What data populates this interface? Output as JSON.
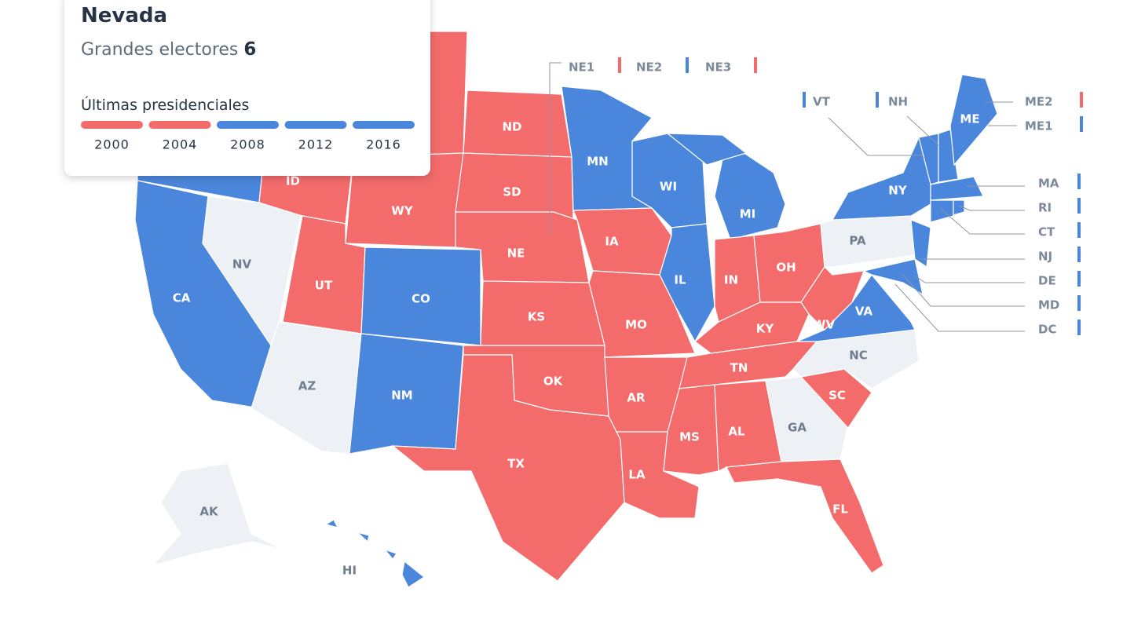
{
  "tooltip": {
    "state": "Nevada",
    "electors_label": "Grandes electores",
    "electors": 6,
    "history_title": "Últimas presidenciales",
    "history": [
      {
        "year": "2000",
        "color": "#f36b6b"
      },
      {
        "year": "2004",
        "color": "#f36b6b"
      },
      {
        "year": "2008",
        "color": "#4a86dc"
      },
      {
        "year": "2012",
        "color": "#4a86dc"
      },
      {
        "year": "2016",
        "color": "#4a86dc"
      }
    ]
  },
  "states": [
    {
      "code": null,
      "color": "#4a86dc"
    },
    {
      "code": null,
      "color": "#4a86dc"
    },
    {
      "code": "CA",
      "color": "#4a86dc"
    },
    {
      "code": "NV",
      "color": "#edf1f6"
    },
    {
      "code": "ID",
      "color": "#f36b6b"
    },
    {
      "code": null,
      "color": "#f36b6b"
    },
    {
      "code": "WY",
      "color": "#f36b6b"
    },
    {
      "code": "UT",
      "color": "#f36b6b"
    },
    {
      "code": "CO",
      "color": "#4a86dc"
    },
    {
      "code": "AZ",
      "color": "#edf1f6"
    },
    {
      "code": "NM",
      "color": "#4a86dc"
    },
    {
      "code": "ND",
      "color": "#f36b6b"
    },
    {
      "code": "SD",
      "color": "#f36b6b"
    },
    {
      "code": "NE",
      "color": "#f36b6b"
    },
    {
      "code": "KS",
      "color": "#f36b6b"
    },
    {
      "code": "OK",
      "color": "#f36b6b"
    },
    {
      "code": "TX",
      "color": "#f36b6b"
    },
    {
      "code": "MN",
      "color": "#4a86dc"
    },
    {
      "code": "IA",
      "color": "#f36b6b"
    },
    {
      "code": "MO",
      "color": "#f36b6b"
    },
    {
      "code": "AR",
      "color": "#f36b6b"
    },
    {
      "code": "LA",
      "color": "#f36b6b"
    },
    {
      "code": "WI",
      "color": "#4a86dc"
    },
    {
      "code": "IL",
      "color": "#4a86dc"
    },
    {
      "code": "MI",
      "color": "#4a86dc"
    },
    {
      "code": null,
      "color": "#4a86dc"
    },
    {
      "code": "IN",
      "color": "#f36b6b"
    },
    {
      "code": "OH",
      "color": "#f36b6b"
    },
    {
      "code": "KY",
      "color": "#f36b6b"
    },
    {
      "code": "TN",
      "color": "#f36b6b"
    },
    {
      "code": "MS",
      "color": "#f36b6b"
    },
    {
      "code": "AL",
      "color": "#f36b6b"
    },
    {
      "code": "GA",
      "color": "#edf1f6"
    },
    {
      "code": "FL",
      "color": "#f36b6b"
    },
    {
      "code": "SC",
      "color": "#f36b6b"
    },
    {
      "code": "NC",
      "color": "#edf1f6"
    },
    {
      "code": "VA",
      "color": "#4a86dc"
    },
    {
      "code": "WV",
      "color": "#f36b6b"
    },
    {
      "code": "PA",
      "color": "#edf1f6"
    },
    {
      "code": "NY",
      "color": "#4a86dc"
    },
    {
      "code": null,
      "color": "#4a86dc"
    },
    {
      "code": null,
      "color": "#4a86dc"
    },
    {
      "code": null,
      "color": "#4a86dc"
    },
    {
      "code": null,
      "color": "#4a86dc"
    },
    {
      "code": "ME",
      "color": "#4a86dc"
    },
    {
      "code": null,
      "color": "#4a86dc"
    },
    {
      "code": null,
      "color": "#4a86dc"
    },
    {
      "code": null,
      "color": "#4a86dc"
    },
    {
      "code": "AK",
      "color": "#edf1f6"
    },
    {
      "code": "HI",
      "color": "#4a86dc"
    }
  ],
  "callouts": [
    {
      "label": "NE1",
      "color": "#f36b6b"
    },
    {
      "label": "NE2",
      "color": "#4a86dc"
    },
    {
      "label": "NE3",
      "color": "#f36b6b"
    },
    {
      "label": "VT",
      "color": "#4a86dc"
    },
    {
      "label": "NH",
      "color": "#4a86dc"
    },
    {
      "label": "ME2",
      "color": "#f36b6b"
    },
    {
      "label": "ME1",
      "color": "#4a86dc"
    },
    {
      "label": "MA",
      "color": "#4a86dc"
    },
    {
      "label": "RI",
      "color": "#4a86dc"
    },
    {
      "label": "CT",
      "color": "#4a86dc"
    },
    {
      "label": "NJ",
      "color": "#4a86dc"
    },
    {
      "label": "DE",
      "color": "#4a86dc"
    },
    {
      "label": "MD",
      "color": "#4a86dc"
    },
    {
      "label": "DC",
      "color": "#4a86dc"
    }
  ]
}
